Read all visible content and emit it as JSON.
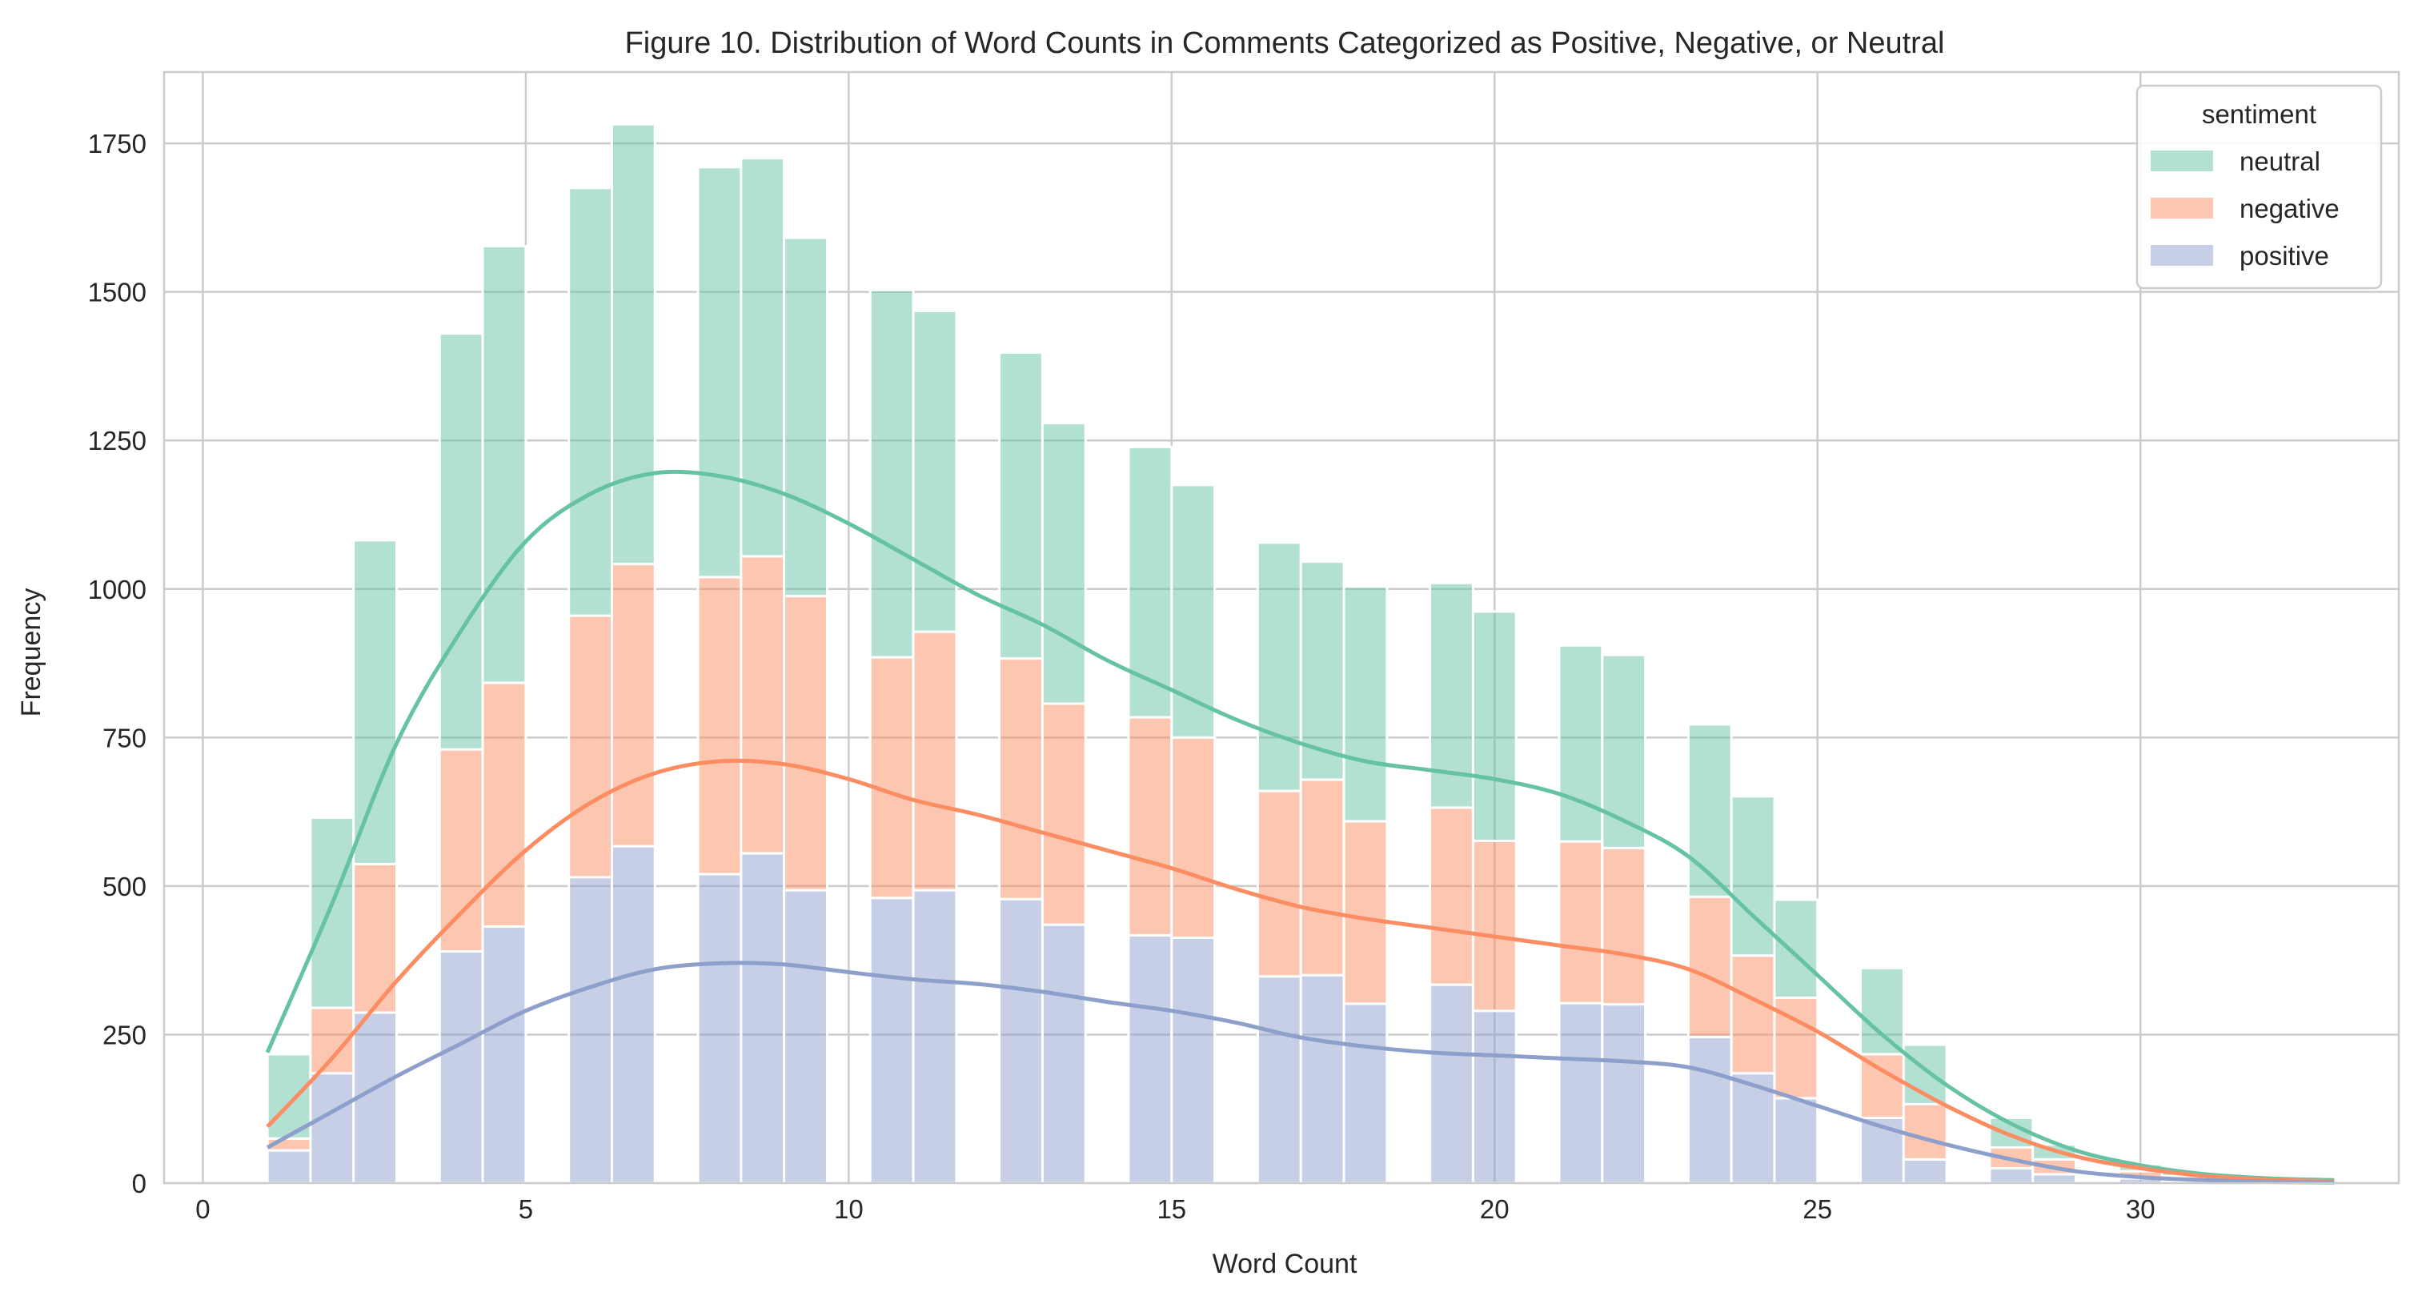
{
  "chart_data": {
    "type": "bar",
    "stacked": true,
    "title": "Figure 10. Distribution of Word Counts in Comments Categorized as Positive, Negative, or Neutral",
    "xlabel": "Word Count",
    "ylabel": "Frequency",
    "xlim": [
      -0.6,
      34
    ],
    "ylim": [
      0,
      1870
    ],
    "xticks": [
      0,
      5,
      10,
      15,
      20,
      25,
      30
    ],
    "yticks": [
      0,
      250,
      500,
      750,
      1000,
      1250,
      1500,
      1750
    ],
    "grid": true,
    "bin_width": 0.667,
    "legend": {
      "title": "sentiment",
      "position": "top-right",
      "entries": [
        "neutral",
        "negative",
        "positive"
      ]
    },
    "colors": {
      "neutral": "#66c2a5",
      "negative": "#fc8d62",
      "positive": "#8da0cb"
    },
    "bins_start": [
      1.0,
      1.667,
      2.333,
      3.0,
      3.667,
      4.333,
      5.0,
      5.667,
      6.333,
      7.0,
      7.667,
      8.333,
      9.0,
      9.667,
      10.333,
      11.0,
      11.667,
      12.333,
      13.0,
      13.667,
      14.333,
      15.0,
      15.667,
      16.333,
      17.0,
      17.667,
      18.333,
      19.0,
      19.667,
      20.333,
      21.0,
      21.667,
      22.333,
      23.0,
      23.667,
      24.333,
      25.0,
      25.667,
      26.333,
      27.0,
      27.667,
      28.333,
      29.0,
      29.667,
      30.333,
      31.0,
      31.667,
      32.333
    ],
    "series": [
      {
        "name": "positive",
        "values": [
          55,
          185,
          287,
          0,
          390,
          432,
          0,
          515,
          567,
          0,
          520,
          555,
          493,
          0,
          480,
          493,
          0,
          478,
          435,
          0,
          417,
          413,
          0,
          348,
          350,
          302,
          0,
          334,
          290,
          0,
          303,
          301,
          0,
          246,
          185,
          143,
          0,
          110,
          40,
          0,
          25,
          15,
          0,
          8,
          4,
          0,
          1,
          0
        ]
      },
      {
        "name": "negative",
        "values": [
          20,
          110,
          250,
          0,
          340,
          410,
          0,
          440,
          475,
          0,
          500,
          500,
          495,
          0,
          405,
          435,
          0,
          405,
          372,
          0,
          367,
          337,
          0,
          312,
          329,
          307,
          0,
          298,
          286,
          0,
          272,
          263,
          0,
          236,
          198,
          169,
          0,
          107,
          93,
          0,
          35,
          25,
          0,
          12,
          8,
          0,
          2,
          0
        ]
      },
      {
        "name": "neutral",
        "values": [
          142,
          320,
          545,
          0,
          700,
          735,
          0,
          720,
          740,
          0,
          690,
          670,
          603,
          0,
          618,
          540,
          0,
          515,
          472,
          0,
          455,
          425,
          0,
          418,
          367,
          395,
          0,
          378,
          386,
          0,
          330,
          325,
          0,
          290,
          268,
          165,
          0,
          145,
          100,
          0,
          50,
          25,
          0,
          12,
          8,
          0,
          2,
          0
        ]
      }
    ],
    "kde": {
      "x": [
        1,
        2,
        3,
        4,
        5,
        6,
        7,
        8,
        9,
        10,
        11,
        12,
        13,
        14,
        15,
        16,
        17,
        18,
        19,
        20,
        21,
        22,
        23,
        24,
        25,
        26,
        27,
        28,
        29,
        30,
        31,
        32,
        33
      ],
      "neutral": [
        220,
        470,
        740,
        930,
        1080,
        1160,
        1195,
        1190,
        1160,
        1110,
        1050,
        990,
        940,
        880,
        830,
        780,
        740,
        710,
        695,
        680,
        655,
        610,
        550,
        450,
        350,
        250,
        165,
        100,
        55,
        30,
        15,
        8,
        5
      ],
      "negative": [
        95,
        210,
        340,
        455,
        560,
        640,
        690,
        710,
        705,
        680,
        645,
        620,
        590,
        560,
        530,
        495,
        465,
        445,
        430,
        415,
        400,
        385,
        360,
        310,
        255,
        190,
        130,
        80,
        45,
        25,
        12,
        6,
        3
      ],
      "positive": [
        60,
        120,
        180,
        235,
        290,
        330,
        360,
        370,
        368,
        355,
        343,
        335,
        322,
        305,
        290,
        270,
        245,
        230,
        220,
        215,
        210,
        205,
        195,
        165,
        130,
        95,
        65,
        40,
        20,
        10,
        5,
        2,
        1
      ]
    }
  }
}
